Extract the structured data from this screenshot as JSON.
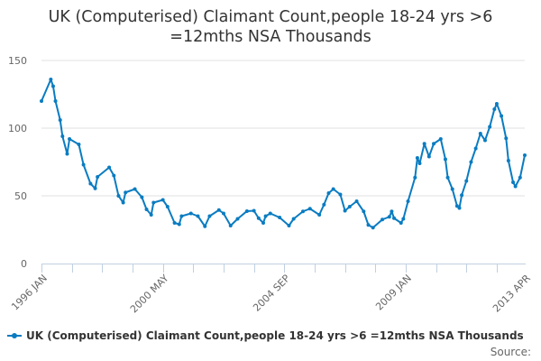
{
  "chart_data": {
    "type": "line",
    "title": "UK (Computerised) Claimant Count,people 18-24 yrs >6 =12mths NSA Thousands",
    "xlabel": "",
    "ylabel": "",
    "ylim": [
      0,
      150
    ],
    "yticks": [
      "0",
      "50",
      "100",
      "150"
    ],
    "xticks": [
      "1996 JAN",
      "2000 MAY",
      "2004 SEP",
      "2009 JAN",
      "2013 APR"
    ],
    "grid": true,
    "legend_position": "bottom",
    "color": "#0a7cc1",
    "series": [
      {
        "name": "UK (Computerised) Claimant Count,people 18-24 yrs >6 =12mths NSA Thousands",
        "x": [
          "1996-01",
          "1996-05",
          "1996-06",
          "1996-07",
          "1996-09",
          "1996-10",
          "1996-12",
          "1997-01",
          "1997-05",
          "1997-07",
          "1997-10",
          "1997-12",
          "1998-01",
          "1998-06",
          "1998-08",
          "1998-10",
          "1998-12",
          "1999-01",
          "1999-05",
          "1999-08",
          "1999-10",
          "1999-12",
          "2000-01",
          "2000-05",
          "2000-07",
          "2000-10",
          "2000-12",
          "2001-01",
          "2001-05",
          "2001-08",
          "2001-11",
          "2002-01",
          "2002-05",
          "2002-07",
          "2002-10",
          "2003-01",
          "2003-05",
          "2003-08",
          "2003-10",
          "2003-12",
          "2004-01",
          "2004-03",
          "2004-07",
          "2004-11",
          "2005-01",
          "2005-05",
          "2005-08",
          "2005-12",
          "2006-02",
          "2006-04",
          "2006-06",
          "2006-09",
          "2006-11",
          "2007-01",
          "2007-04",
          "2007-07",
          "2007-09",
          "2007-11",
          "2008-03",
          "2008-06",
          "2008-07",
          "2008-08",
          "2008-11",
          "2008-12",
          "2009-02",
          "2009-05",
          "2009-06",
          "2009-07",
          "2009-09",
          "2009-11",
          "2010-01",
          "2010-04",
          "2010-06",
          "2010-07",
          "2010-09",
          "2010-11",
          "2010-12",
          "2011-01",
          "2011-03",
          "2011-05",
          "2011-07",
          "2011-09",
          "2011-11",
          "2012-01",
          "2012-03",
          "2012-04",
          "2012-06",
          "2012-08",
          "2012-09",
          "2012-11",
          "2012-12",
          "2013-02",
          "2013-04"
        ],
        "values": [
          120,
          136,
          131,
          120,
          106,
          94,
          81,
          92,
          88,
          73,
          59,
          55.5,
          64,
          71,
          65,
          50,
          45,
          52.5,
          55,
          49,
          40,
          36,
          45,
          47,
          42,
          30,
          29,
          35,
          37,
          35,
          27.5,
          35,
          39.5,
          37,
          28,
          33,
          38.7,
          39,
          33.5,
          30,
          35,
          37,
          34,
          28,
          33,
          38.5,
          40.5,
          36,
          43.5,
          52,
          55,
          51,
          39,
          42,
          46,
          38.5,
          28.5,
          26.5,
          32.5,
          34.5,
          38.5,
          33.5,
          30,
          33,
          46,
          63.5,
          78,
          74,
          88.5,
          79,
          88.5,
          92,
          77,
          63.5,
          55,
          42.5,
          41,
          50.5,
          61,
          75,
          85,
          96,
          91,
          101,
          114,
          118,
          109,
          92.5,
          76,
          60,
          57,
          63.5,
          80
        ]
      }
    ]
  },
  "legend": {
    "label": "UK (Computerised) Claimant Count,people 18-24 yrs >6 =12mths NSA Thousands"
  },
  "source_label": "Source:"
}
